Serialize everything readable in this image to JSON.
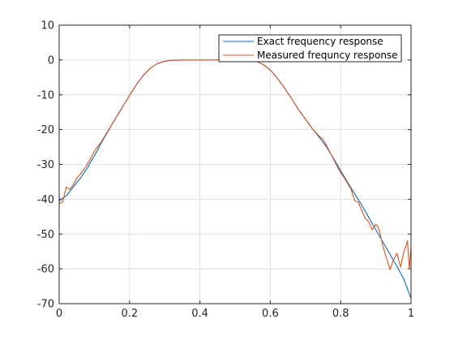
{
  "chart_data": {
    "type": "line",
    "title": "",
    "xlabel": "",
    "ylabel": "",
    "xlim": [
      0,
      1
    ],
    "ylim": [
      -70,
      10
    ],
    "x_ticks": [
      0,
      0.2,
      0.4,
      0.6,
      0.8,
      1
    ],
    "x_tick_labels": [
      "0",
      "0.2",
      "0.4",
      "0.6",
      "0.8",
      "1"
    ],
    "y_ticks": [
      10,
      0,
      -10,
      -20,
      -30,
      -40,
      -50,
      -60,
      -70
    ],
    "y_tick_labels": [
      "10",
      "0",
      "-10",
      "-20",
      "-30",
      "-40",
      "-50",
      "-60",
      "-70"
    ],
    "grid": true,
    "legend_position": "top-right",
    "series": [
      {
        "name": "Exact frequency response",
        "color": "#0072BD",
        "points": [
          [
            0.0,
            -40.5
          ],
          [
            0.02,
            -39.0
          ],
          [
            0.04,
            -36.5
          ],
          [
            0.06,
            -34.0
          ],
          [
            0.08,
            -31.0
          ],
          [
            0.1,
            -27.5
          ],
          [
            0.12,
            -23.8
          ],
          [
            0.15,
            -18.5
          ],
          [
            0.18,
            -13.5
          ],
          [
            0.2,
            -10.2
          ],
          [
            0.22,
            -7.0
          ],
          [
            0.24,
            -4.3
          ],
          [
            0.26,
            -2.3
          ],
          [
            0.28,
            -1.0
          ],
          [
            0.3,
            -0.35
          ],
          [
            0.32,
            -0.1
          ],
          [
            0.35,
            0.0
          ],
          [
            0.4,
            0.0
          ],
          [
            0.45,
            0.0
          ],
          [
            0.5,
            0.0
          ],
          [
            0.54,
            -0.1
          ],
          [
            0.56,
            -0.4
          ],
          [
            0.58,
            -1.3
          ],
          [
            0.6,
            -2.9
          ],
          [
            0.62,
            -5.2
          ],
          [
            0.64,
            -8.0
          ],
          [
            0.66,
            -11.0
          ],
          [
            0.68,
            -14.2
          ],
          [
            0.7,
            -17.0
          ],
          [
            0.72,
            -19.8
          ],
          [
            0.74,
            -22.3
          ],
          [
            0.76,
            -25.0
          ],
          [
            0.78,
            -28.3
          ],
          [
            0.8,
            -31.8
          ],
          [
            0.82,
            -35.2
          ],
          [
            0.84,
            -38.5
          ],
          [
            0.86,
            -41.7
          ],
          [
            0.88,
            -45.2
          ],
          [
            0.9,
            -48.8
          ],
          [
            0.92,
            -52.3
          ],
          [
            0.94,
            -55.8
          ],
          [
            0.96,
            -59.3
          ],
          [
            0.98,
            -63.0
          ],
          [
            1.0,
            -68.5
          ]
        ]
      },
      {
        "name": "Measured frequncy response",
        "color": "#D95319",
        "points": [
          [
            0.0,
            -41.2
          ],
          [
            0.01,
            -40.8
          ],
          [
            0.02,
            -36.5
          ],
          [
            0.03,
            -37.2
          ],
          [
            0.04,
            -35.8
          ],
          [
            0.05,
            -34.0
          ],
          [
            0.06,
            -32.8
          ],
          [
            0.07,
            -31.5
          ],
          [
            0.08,
            -29.9
          ],
          [
            0.09,
            -28.2
          ],
          [
            0.1,
            -26.2
          ],
          [
            0.11,
            -24.8
          ],
          [
            0.12,
            -23.5
          ],
          [
            0.15,
            -18.5
          ],
          [
            0.18,
            -13.5
          ],
          [
            0.2,
            -10.2
          ],
          [
            0.22,
            -7.0
          ],
          [
            0.24,
            -4.3
          ],
          [
            0.26,
            -2.3
          ],
          [
            0.28,
            -1.0
          ],
          [
            0.3,
            -0.35
          ],
          [
            0.32,
            -0.1
          ],
          [
            0.35,
            0.0
          ],
          [
            0.4,
            0.0
          ],
          [
            0.45,
            0.0
          ],
          [
            0.5,
            0.0
          ],
          [
            0.54,
            -0.1
          ],
          [
            0.56,
            -0.4
          ],
          [
            0.58,
            -1.3
          ],
          [
            0.6,
            -2.9
          ],
          [
            0.62,
            -5.2
          ],
          [
            0.64,
            -8.0
          ],
          [
            0.66,
            -11.0
          ],
          [
            0.68,
            -14.2
          ],
          [
            0.7,
            -17.0
          ],
          [
            0.72,
            -19.8
          ],
          [
            0.74,
            -22.0
          ],
          [
            0.75,
            -22.8
          ],
          [
            0.76,
            -24.6
          ],
          [
            0.78,
            -28.5
          ],
          [
            0.8,
            -32.5
          ],
          [
            0.81,
            -33.8
          ],
          [
            0.82,
            -35.5
          ],
          [
            0.83,
            -37.2
          ],
          [
            0.84,
            -40.5
          ],
          [
            0.85,
            -40.8
          ],
          [
            0.86,
            -43.2
          ],
          [
            0.87,
            -45.5
          ],
          [
            0.88,
            -46.5
          ],
          [
            0.89,
            -48.8
          ],
          [
            0.9,
            -47.2
          ],
          [
            0.905,
            -47.8
          ],
          [
            0.91,
            -49.0
          ],
          [
            0.92,
            -53.5
          ],
          [
            0.93,
            -56.8
          ],
          [
            0.94,
            -60.2
          ],
          [
            0.95,
            -57.5
          ],
          [
            0.96,
            -55.5
          ],
          [
            0.97,
            -59.5
          ],
          [
            0.98,
            -55.0
          ],
          [
            0.99,
            -52.0
          ],
          [
            0.995,
            -60.0
          ],
          [
            1.0,
            -53.5
          ]
        ]
      }
    ]
  }
}
